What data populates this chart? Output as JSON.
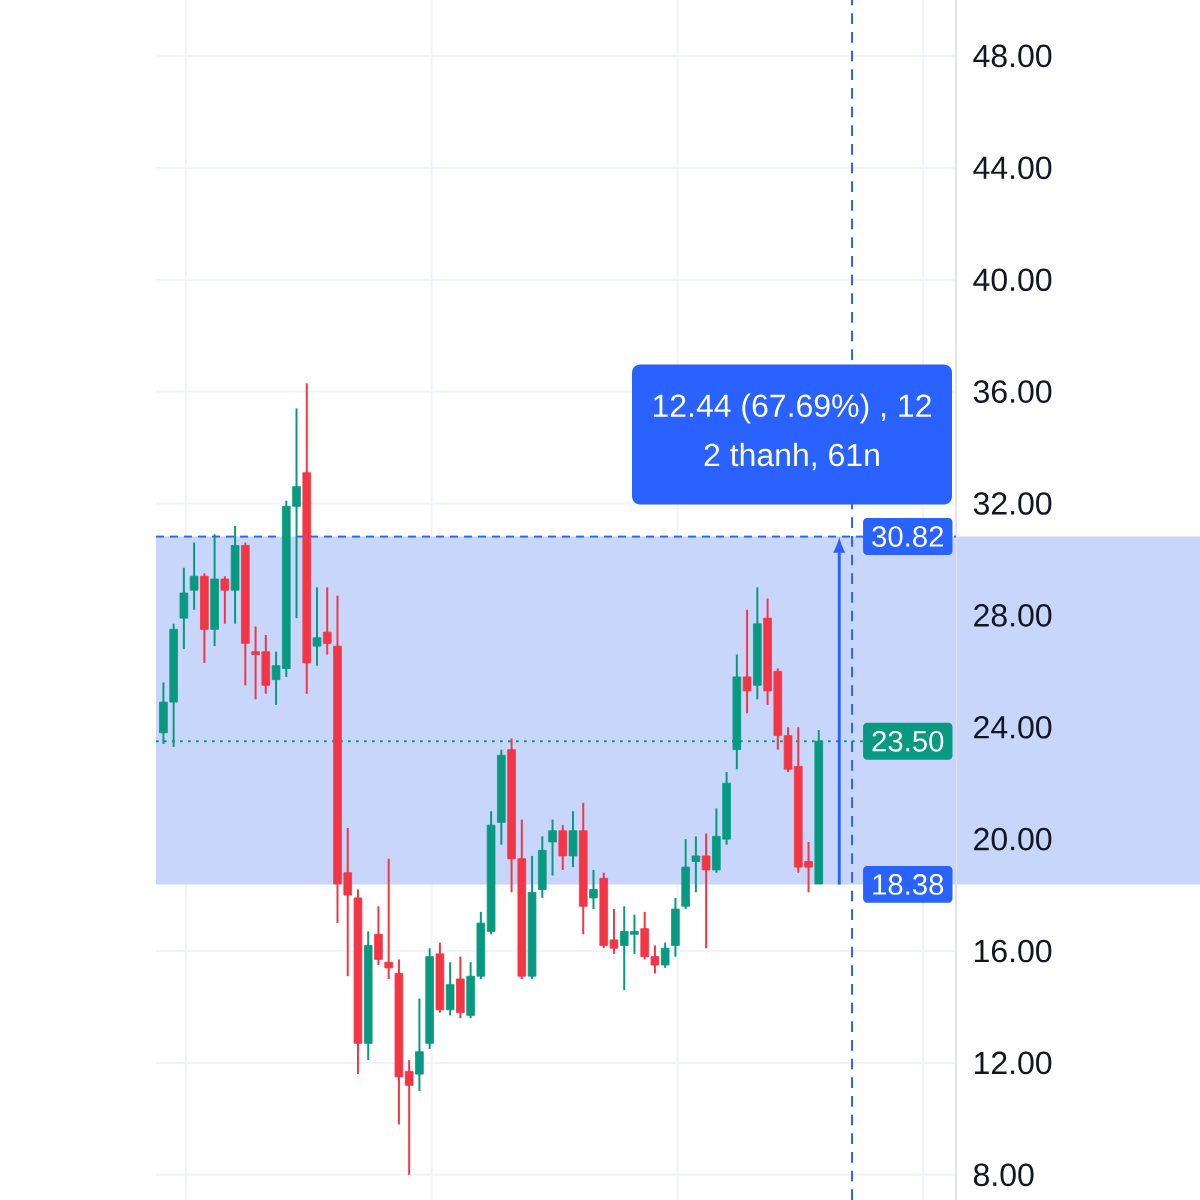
{
  "chart_data": {
    "type": "candlestick",
    "categories": [
      null,
      null,
      null,
      null,
      null,
      null,
      null,
      null,
      null,
      null,
      null,
      null,
      null,
      null,
      null,
      null,
      null,
      null,
      null,
      null,
      null,
      null,
      null,
      null,
      null,
      null,
      null,
      null,
      null,
      null,
      null,
      null,
      null,
      null,
      null,
      null,
      null,
      null,
      null,
      null,
      null,
      null,
      null,
      null,
      null,
      null,
      null,
      null,
      null,
      null,
      null,
      null,
      null,
      null,
      null,
      null,
      null,
      null,
      null,
      null,
      null,
      null,
      null,
      null,
      null
    ],
    "ohlc": [
      [
        23.8,
        25.6,
        23.4,
        24.9
      ],
      [
        24.9,
        27.7,
        23.3,
        27.5
      ],
      [
        27.9,
        29.7,
        26.8,
        28.8
      ],
      [
        28.9,
        30.6,
        28.2,
        29.4
      ],
      [
        29.4,
        29.5,
        26.3,
        27.5
      ],
      [
        27.5,
        30.9,
        26.9,
        29.3
      ],
      [
        29.3,
        29.4,
        27.7,
        28.9
      ],
      [
        28.9,
        31.2,
        27.7,
        30.5
      ],
      [
        30.5,
        30.6,
        25.5,
        27.0
      ],
      [
        26.7,
        27.6,
        25.0,
        26.6
      ],
      [
        26.7,
        27.3,
        25.2,
        25.5
      ],
      [
        25.7,
        26.7,
        24.8,
        26.2
      ],
      [
        26.1,
        32.1,
        25.8,
        31.9
      ],
      [
        31.9,
        35.4,
        27.9,
        32.6
      ],
      [
        33.1,
        36.3,
        25.2,
        26.3
      ],
      [
        26.9,
        29.0,
        26.2,
        27.2
      ],
      [
        27.4,
        29.0,
        26.6,
        27.0
      ],
      [
        26.9,
        28.7,
        17.0,
        18.4
      ],
      [
        18.8,
        20.4,
        15.1,
        18.0
      ],
      [
        17.9,
        18.2,
        11.6,
        12.7
      ],
      [
        12.7,
        16.7,
        12.1,
        16.2
      ],
      [
        16.6,
        17.6,
        15.5,
        15.7
      ],
      [
        15.6,
        19.3,
        15.0,
        15.4
      ],
      [
        15.2,
        15.7,
        9.8,
        11.5
      ],
      [
        11.7,
        12.1,
        8.0,
        11.2
      ],
      [
        11.6,
        14.3,
        11.0,
        12.4
      ],
      [
        12.7,
        16.1,
        12.5,
        15.8
      ],
      [
        15.9,
        16.3,
        13.8,
        13.9
      ],
      [
        13.9,
        15.6,
        13.7,
        14.8
      ],
      [
        15.0,
        15.8,
        13.6,
        13.8
      ],
      [
        13.7,
        15.6,
        13.6,
        15.1
      ],
      [
        15.1,
        17.4,
        15.0,
        17.0
      ],
      [
        16.7,
        21.0,
        16.6,
        20.5
      ],
      [
        20.6,
        23.2,
        19.8,
        23.0
      ],
      [
        23.2,
        23.6,
        18.1,
        19.3
      ],
      [
        19.3,
        20.7,
        15.0,
        15.1
      ],
      [
        15.1,
        19.4,
        15.0,
        18.1
      ],
      [
        18.2,
        20.1,
        17.9,
        19.6
      ],
      [
        19.9,
        20.7,
        18.7,
        20.3
      ],
      [
        20.3,
        20.5,
        18.9,
        19.4
      ],
      [
        19.4,
        21.0,
        19.0,
        20.3
      ],
      [
        20.3,
        21.3,
        16.6,
        17.6
      ],
      [
        17.9,
        18.9,
        17.5,
        18.2
      ],
      [
        18.6,
        18.8,
        16.1,
        16.2
      ],
      [
        16.4,
        17.5,
        15.9,
        16.1
      ],
      [
        16.2,
        17.6,
        14.6,
        16.7
      ],
      [
        16.6,
        17.3,
        15.9,
        16.7
      ],
      [
        16.8,
        17.4,
        15.7,
        15.8
      ],
      [
        15.8,
        16.2,
        15.2,
        15.5
      ],
      [
        15.5,
        16.3,
        15.4,
        16.1
      ],
      [
        16.2,
        17.9,
        15.8,
        17.5
      ],
      [
        17.6,
        20.0,
        17.5,
        19.0
      ],
      [
        19.2,
        20.1,
        18.1,
        19.4
      ],
      [
        19.4,
        20.2,
        16.1,
        18.9
      ],
      [
        18.9,
        21.1,
        18.8,
        20.1
      ],
      [
        20.0,
        22.4,
        19.8,
        22.0
      ],
      [
        23.2,
        26.6,
        22.5,
        25.8
      ],
      [
        25.8,
        28.2,
        24.5,
        25.3
      ],
      [
        25.5,
        29.0,
        25.0,
        27.7
      ],
      [
        27.9,
        28.6,
        24.8,
        25.3
      ],
      [
        26.0,
        26.1,
        23.2,
        23.7
      ],
      [
        23.7,
        24.0,
        22.4,
        22.5
      ],
      [
        22.6,
        24.0,
        18.8,
        19.0
      ],
      [
        19.2,
        19.9,
        18.1,
        19.0
      ],
      [
        18.4,
        23.9,
        18.4,
        23.5
      ]
    ],
    "colors": [
      "#089981",
      "#089981",
      "#089981",
      "#089981",
      "#f23645",
      "#089981",
      "#f23645",
      "#089981",
      "#f23645",
      "#f23645",
      "#f23645",
      "#089981",
      "#089981",
      "#089981",
      "#f23645",
      "#089981",
      "#f23645",
      "#f23645",
      "#f23645",
      "#f23645",
      "#089981",
      "#f23645",
      "#f23645",
      "#f23645",
      "#f23645",
      "#089981",
      "#089981",
      "#f23645",
      "#089981",
      "#f23645",
      "#089981",
      "#089981",
      "#089981",
      "#089981",
      "#f23645",
      "#f23645",
      "#089981",
      "#089981",
      "#089981",
      "#f23645",
      "#089981",
      "#f23645",
      "#089981",
      "#f23645",
      "#f23645",
      "#089981",
      "#089981",
      "#f23645",
      "#f23645",
      "#089981",
      "#089981",
      "#089981",
      "#089981",
      "#f23645",
      "#089981",
      "#089981",
      "#089981",
      "#f23645",
      "#089981",
      "#f23645",
      "#f23645",
      "#f23645",
      "#f23645",
      "#f23645",
      "#089981"
    ],
    "ylim": [
      7.1,
      50
    ],
    "yticks": [
      {
        "value": 8,
        "label": "8.00"
      },
      {
        "value": 12,
        "label": "12.00"
      },
      {
        "value": 16,
        "label": "16.00"
      },
      {
        "value": 20,
        "label": "20.00"
      },
      {
        "value": 24,
        "label": "24.00"
      },
      {
        "value": 28,
        "label": "28.00"
      },
      {
        "value": 32,
        "label": "32.00"
      },
      {
        "value": 36,
        "label": "36.00"
      },
      {
        "value": 40,
        "label": "40.00"
      },
      {
        "value": 44,
        "label": "44.00"
      },
      {
        "value": 48,
        "label": "48.00"
      }
    ],
    "grid": true,
    "tick_labels": "y",
    "ref_lines": [
      {
        "axis": "y",
        "value": 30.82,
        "label": "30.82",
        "color": "#2962ff",
        "line_style": "dashed"
      },
      {
        "axis": "y",
        "value": 23.5,
        "label": "23.50",
        "color": "#089981",
        "line_style": "dotted"
      }
    ],
    "bands": [
      {
        "axis": "y",
        "from": 18.38,
        "to": 30.82,
        "label": "18.38",
        "color": "#c8d6fb"
      }
    ],
    "annotations": [
      "12.44 (67.69%) , 12",
      "2 thanh, 61n"
    ]
  }
}
